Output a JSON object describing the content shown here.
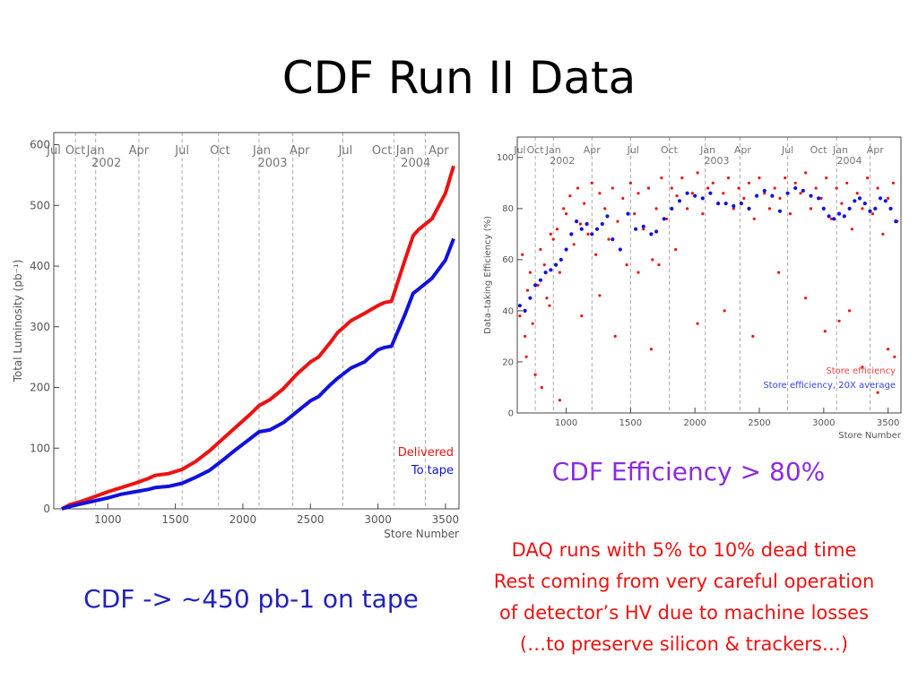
{
  "title": "CDF Run II Data",
  "captions": {
    "left": "CDF ->   ~450 pb-1 on tape",
    "efficiency": "CDF Efficiency  > 80%",
    "notes": [
      "DAQ runs with 5% to 10% dead time",
      "Rest coming from very careful operation",
      "of detector’s HV due to machine losses",
      "(…to preserve silicon & trackers…)"
    ]
  },
  "colors": {
    "delivered": "#ee1111",
    "to_tape": "#1111dd",
    "efficiency_caption": "#8a2be2",
    "notes": "#ee1111",
    "left_caption": "#2222bb"
  },
  "chart_data": [
    {
      "type": "line",
      "xlabel": "Store Number",
      "ylabel": "Total Luminosity (pb⁻¹)",
      "xlim": [
        600,
        3600
      ],
      "ylim": [
        0,
        620
      ],
      "xticks": [
        1000,
        1500,
        2000,
        2500,
        3000,
        3500
      ],
      "yticks": [
        0,
        100,
        200,
        300,
        400,
        500,
        600
      ],
      "grid": false,
      "legend_position": "bottom-right",
      "month_markers": [
        {
          "label": "Jul",
          "x": 600
        },
        {
          "label": "Oct",
          "x": 760
        },
        {
          "label": "Jan",
          "x": 910,
          "year": "2002"
        },
        {
          "label": "Apr",
          "x": 1230
        },
        {
          "label": "Jul",
          "x": 1550
        },
        {
          "label": "Oct",
          "x": 1830
        },
        {
          "label": "Jan",
          "x": 2140,
          "year": "2003"
        },
        {
          "label": "Apr",
          "x": 2420
        },
        {
          "label": "Jul",
          "x": 2760
        },
        {
          "label": "Oct",
          "x": 3030
        },
        {
          "label": "Jan",
          "x": 3200,
          "year": "2004"
        },
        {
          "label": "Apr",
          "x": 3450
        }
      ],
      "month_gridlines": [
        760,
        910,
        1230,
        1550,
        1820,
        2120,
        2370,
        2740,
        3120,
        3350
      ],
      "series": [
        {
          "name": "Delivered",
          "x": [
            660,
            720,
            800,
            900,
            1000,
            1100,
            1200,
            1300,
            1350,
            1450,
            1550,
            1650,
            1750,
            1850,
            1950,
            2050,
            2120,
            2200,
            2300,
            2400,
            2500,
            2560,
            2650,
            2700,
            2800,
            2900,
            3000,
            3050,
            3100,
            3200,
            3260,
            3300,
            3400,
            3500,
            3560
          ],
          "y": [
            0,
            7,
            12,
            20,
            28,
            35,
            42,
            50,
            55,
            58,
            65,
            78,
            95,
            115,
            135,
            155,
            170,
            180,
            198,
            222,
            242,
            250,
            275,
            290,
            310,
            322,
            335,
            340,
            342,
            410,
            450,
            460,
            478,
            520,
            565
          ]
        },
        {
          "name": "To tape",
          "x": [
            660,
            720,
            800,
            900,
            1000,
            1100,
            1200,
            1300,
            1350,
            1450,
            1550,
            1650,
            1750,
            1850,
            1950,
            2050,
            2120,
            2200,
            2300,
            2400,
            2500,
            2560,
            2650,
            2700,
            2800,
            2900,
            3000,
            3050,
            3100,
            3200,
            3260,
            3300,
            3400,
            3500,
            3560
          ],
          "y": [
            0,
            4,
            8,
            13,
            18,
            24,
            28,
            32,
            35,
            37,
            42,
            52,
            63,
            80,
            98,
            115,
            127,
            130,
            142,
            160,
            178,
            185,
            205,
            215,
            232,
            242,
            262,
            266,
            268,
            320,
            355,
            362,
            380,
            410,
            445
          ]
        }
      ]
    },
    {
      "type": "scatter",
      "xlabel": "Store Number",
      "ylabel": "Data–taking Efficiency (%)",
      "xlim": [
        620,
        3600
      ],
      "ylim": [
        0,
        108
      ],
      "xticks": [
        1000,
        1500,
        2000,
        2500,
        3000,
        3500
      ],
      "yticks": [
        0,
        20,
        40,
        60,
        80,
        100
      ],
      "grid": false,
      "legend_position": "bottom-right",
      "month_markers": [
        {
          "label": "Jul",
          "x": 640
        },
        {
          "label": "Oct",
          "x": 760
        },
        {
          "label": "Jan",
          "x": 900,
          "year": "2002"
        },
        {
          "label": "Apr",
          "x": 1200
        },
        {
          "label": "Jul",
          "x": 1520
        },
        {
          "label": "Oct",
          "x": 1800
        },
        {
          "label": "Jan",
          "x": 2100,
          "year": "2003"
        },
        {
          "label": "Apr",
          "x": 2370
        },
        {
          "label": "Jul",
          "x": 2720
        },
        {
          "label": "Oct",
          "x": 2960
        },
        {
          "label": "Jan",
          "x": 3130,
          "year": "2004"
        },
        {
          "label": "Apr",
          "x": 3400
        }
      ],
      "month_gridlines": [
        760,
        900,
        1200,
        1500,
        1800,
        2080,
        2350,
        2720,
        3100,
        3360
      ],
      "series": [
        {
          "name": "Store efficiency",
          "x": [
            640,
            660,
            680,
            700,
            720,
            740,
            780,
            800,
            830,
            850,
            880,
            900,
            930,
            950,
            980,
            1000,
            1030,
            1060,
            1090,
            1110,
            1140,
            1170,
            1200,
            1230,
            1260,
            1300,
            1330,
            1360,
            1400,
            1440,
            1470,
            1500,
            1530,
            1560,
            1600,
            1640,
            1670,
            1700,
            1740,
            1780,
            1820,
            1860,
            1900,
            1940,
            1980,
            2020,
            2060,
            2100,
            2140,
            2180,
            2220,
            2260,
            2300,
            2340,
            2380,
            2420,
            2460,
            2500,
            2540,
            2580,
            2620,
            2660,
            2700,
            2740,
            2780,
            2820,
            2860,
            2900,
            2940,
            2980,
            3020,
            3060,
            3100,
            3140,
            3180,
            3220,
            3260,
            3300,
            3340,
            3380,
            3420,
            3460,
            3500,
            3540,
            3570,
            690,
            760,
            810,
            870,
            950,
            1120,
            1260,
            1380,
            1560,
            1660,
            1720,
            1850,
            2020,
            2230,
            2450,
            2650,
            2860,
            3010,
            3120,
            3200,
            3300,
            3420,
            3500,
            3550
          ],
          "y": [
            38,
            62,
            30,
            48,
            55,
            35,
            50,
            64,
            58,
            45,
            70,
            68,
            72,
            55,
            80,
            78,
            85,
            66,
            88,
            74,
            82,
            70,
            90,
            62,
            86,
            80,
            68,
            88,
            75,
            84,
            58,
            90,
            78,
            86,
            72,
            88,
            60,
            80,
            92,
            76,
            88,
            85,
            92,
            80,
            86,
            94,
            78,
            88,
            90,
            82,
            86,
            92,
            80,
            88,
            84,
            90,
            76,
            92,
            86,
            80,
            88,
            84,
            92,
            78,
            90,
            86,
            94,
            80,
            88,
            84,
            92,
            76,
            88,
            82,
            90,
            72,
            86,
            80,
            92,
            78,
            88,
            70,
            84,
            90,
            75,
            22,
            15,
            10,
            42,
            5,
            38,
            46,
            30,
            55,
            25,
            58,
            64,
            35,
            40,
            30,
            55,
            45,
            32,
            36,
            40,
            18,
            8,
            25,
            22
          ]
        },
        {
          "name": "Store efficiency, 20X average",
          "x": [
            640,
            680,
            720,
            760,
            800,
            840,
            880,
            920,
            960,
            1000,
            1040,
            1080,
            1120,
            1160,
            1200,
            1240,
            1280,
            1320,
            1360,
            1420,
            1480,
            1540,
            1600,
            1660,
            1700,
            1760,
            1820,
            1880,
            1940,
            2000,
            2060,
            2120,
            2180,
            2240,
            2300,
            2360,
            2420,
            2480,
            2540,
            2600,
            2660,
            2720,
            2780,
            2840,
            2900,
            2960,
            3000,
            3040,
            3080,
            3120,
            3160,
            3200,
            3240,
            3280,
            3320,
            3360,
            3400,
            3440,
            3480,
            3520,
            3560
          ],
          "y": [
            42,
            40,
            45,
            50,
            52,
            55,
            56,
            58,
            60,
            64,
            70,
            75,
            72,
            74,
            70,
            72,
            74,
            77,
            68,
            64,
            78,
            72,
            73,
            70,
            71,
            76,
            80,
            83,
            86,
            85,
            84,
            86,
            82,
            82,
            81,
            82,
            80,
            85,
            87,
            85,
            79,
            86,
            88,
            87,
            85,
            84,
            80,
            77,
            76,
            78,
            77,
            80,
            83,
            84,
            82,
            79,
            80,
            84,
            83,
            80,
            75
          ]
        }
      ]
    }
  ]
}
